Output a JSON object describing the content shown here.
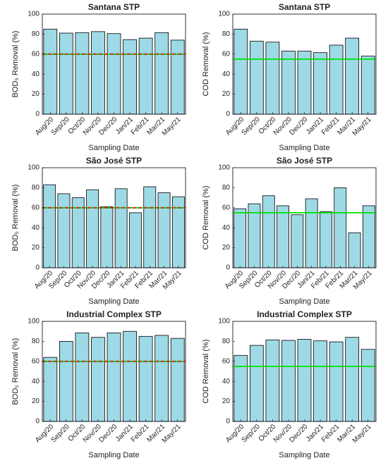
{
  "chart_data": [
    {
      "type": "bar",
      "title": "Santana STP",
      "ylabel": "BOD₅ Removal (%)",
      "xlabel": "Sampling Date",
      "categories": [
        "Aug/20",
        "Sep/20",
        "Oct/20",
        "Nov/20",
        "Dec/20",
        "Jan/21",
        "Feb/21",
        "Mar/21",
        "May/21"
      ],
      "values": [
        85,
        81,
        81.5,
        82.5,
        80.5,
        74.5,
        76,
        81.5,
        74
      ],
      "color": "#9ed9e6",
      "ylim": [
        0,
        100
      ],
      "yticks": [
        0,
        20,
        40,
        60,
        80,
        100
      ],
      "hlines": [
        {
          "value": 60,
          "color": "#00e000",
          "dash": false
        },
        {
          "value": 60,
          "color": "#d62728",
          "dash": true
        }
      ]
    },
    {
      "type": "bar",
      "title": "Santana STP",
      "ylabel": "COD Removal (%)",
      "xlabel": "Sampling Date",
      "categories": [
        "Aug/20",
        "Sep/20",
        "Oct/20",
        "Nov/20",
        "Dec/20",
        "Jan/21",
        "Feb/21",
        "Mar/21",
        "May/21"
      ],
      "values": [
        85,
        73,
        72,
        63,
        63,
        61.5,
        69,
        76,
        58
      ],
      "color": "#9ed9e6",
      "ylim": [
        0,
        100
      ],
      "yticks": [
        0,
        20,
        40,
        60,
        80,
        100
      ],
      "hlines": [
        {
          "value": 55,
          "color": "#00e000",
          "dash": false
        }
      ]
    },
    {
      "type": "bar",
      "title": "São José STP",
      "ylabel": "BOD₅ Removal (%)",
      "xlabel": "Sampling Date",
      "categories": [
        "Aug/20",
        "Sep/20",
        "Oct/20",
        "Nov/20",
        "Dec/20",
        "Jan/21",
        "Feb/21",
        "Feb/21",
        "Mar/21",
        "May/21"
      ],
      "values": [
        83,
        74,
        70,
        78,
        61,
        79,
        55,
        81,
        75,
        71
      ],
      "color": "#9ed9e6",
      "ylim": [
        0,
        100
      ],
      "yticks": [
        0,
        20,
        40,
        60,
        80,
        100
      ],
      "hlines": [
        {
          "value": 60,
          "color": "#00e000",
          "dash": false
        },
        {
          "value": 60,
          "color": "#d62728",
          "dash": true
        }
      ]
    },
    {
      "type": "bar",
      "title": "São José STP",
      "ylabel": "COD Removal (%)",
      "xlabel": "Sampling Date",
      "categories": [
        "Aug/20",
        "Sep/20",
        "Oct/20",
        "Nov/20",
        "Dec/20",
        "Jan/21",
        "Feb/21",
        "Feb/21",
        "Mar/21",
        "May/21"
      ],
      "values": [
        59,
        64,
        72,
        62,
        53,
        69,
        56,
        80,
        35,
        62
      ],
      "color": "#9ed9e6",
      "ylim": [
        0,
        100
      ],
      "yticks": [
        0,
        20,
        40,
        60,
        80,
        100
      ],
      "hlines": [
        {
          "value": 55,
          "color": "#00e000",
          "dash": false
        }
      ]
    },
    {
      "type": "bar",
      "title": "Industrial Complex STP",
      "ylabel": "BOD₅ Removal (%)",
      "xlabel": "Sampling Date",
      "categories": [
        "Aug/20",
        "Sep/20",
        "Oct/20",
        "Nov/20",
        "Dec/20",
        "Jan/21",
        "Feb/21",
        "Mar/21",
        "May/21"
      ],
      "values": [
        64,
        80,
        88.5,
        84,
        88.5,
        90,
        85,
        86,
        83
      ],
      "color": "#9ed9e6",
      "ylim": [
        0,
        100
      ],
      "yticks": [
        0,
        20,
        40,
        60,
        80,
        100
      ],
      "hlines": [
        {
          "value": 60,
          "color": "#00e000",
          "dash": false
        },
        {
          "value": 60,
          "color": "#d62728",
          "dash": true
        }
      ]
    },
    {
      "type": "bar",
      "title": "Industrial Complex STP",
      "ylabel": "COD Removal (%)",
      "xlabel": "Sampling Date",
      "categories": [
        "Aug/20",
        "Sep/20",
        "Oct/20",
        "Nov/20",
        "Dec/20",
        "Jan/21",
        "Feb/21",
        "Mar/21",
        "May/21"
      ],
      "values": [
        66,
        76,
        81.5,
        81,
        82,
        80.5,
        79.5,
        84,
        72
      ],
      "color": "#9ed9e6",
      "ylim": [
        0,
        100
      ],
      "yticks": [
        0,
        20,
        40,
        60,
        80,
        100
      ],
      "hlines": [
        {
          "value": 55,
          "color": "#00e000",
          "dash": false
        }
      ]
    }
  ]
}
